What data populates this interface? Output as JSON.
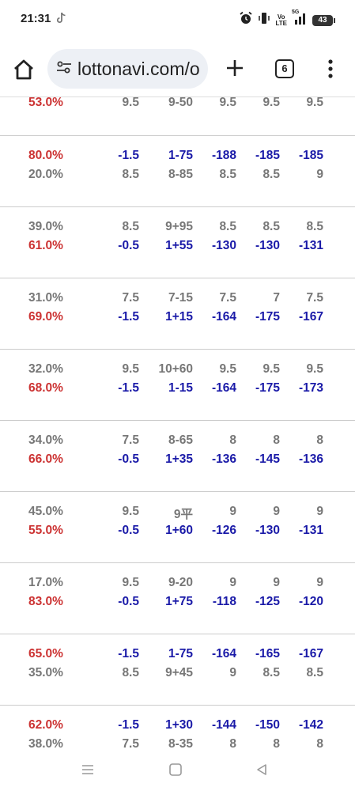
{
  "status": {
    "time": "21:31",
    "volte_top": "Vo",
    "volte_bottom": "LTE",
    "signal_label": "5G",
    "battery": "43"
  },
  "browser": {
    "url": "lottonavi.com/o",
    "tab_count": "6"
  },
  "top_row": {
    "pct": "53.0%",
    "v1": "9.5",
    "v2": "9-50",
    "v3": "9.5",
    "v4": "9.5",
    "v5": "9.5",
    "pct_color": "red",
    "val_color": "gray"
  },
  "groups": [
    {
      "rows": [
        {
          "pct": "80.0%",
          "pct_color": "red",
          "val_color": "blue",
          "v1": "-1.5",
          "v2": "1-75",
          "v3": "-188",
          "v4": "-185",
          "v5": "-185"
        },
        {
          "pct": "20.0%",
          "pct_color": "gray",
          "val_color": "gray",
          "v1": "8.5",
          "v2": "8-85",
          "v3": "8.5",
          "v4": "8.5",
          "v5": "9"
        }
      ]
    },
    {
      "rows": [
        {
          "pct": "39.0%",
          "pct_color": "gray",
          "val_color": "gray",
          "v1": "8.5",
          "v2": "9+95",
          "v3": "8.5",
          "v4": "8.5",
          "v5": "8.5"
        },
        {
          "pct": "61.0%",
          "pct_color": "red",
          "val_color": "blue",
          "v1": "-0.5",
          "v2": "1+55",
          "v3": "-130",
          "v4": "-130",
          "v5": "-131"
        }
      ]
    },
    {
      "rows": [
        {
          "pct": "31.0%",
          "pct_color": "gray",
          "val_color": "gray",
          "v1": "7.5",
          "v2": "7-15",
          "v3": "7.5",
          "v4": "7",
          "v5": "7.5"
        },
        {
          "pct": "69.0%",
          "pct_color": "red",
          "val_color": "blue",
          "v1": "-1.5",
          "v2": "1+15",
          "v3": "-164",
          "v4": "-175",
          "v5": "-167"
        }
      ]
    },
    {
      "rows": [
        {
          "pct": "32.0%",
          "pct_color": "gray",
          "val_color": "gray",
          "v1": "9.5",
          "v2": "10+60",
          "v3": "9.5",
          "v4": "9.5",
          "v5": "9.5"
        },
        {
          "pct": "68.0%",
          "pct_color": "red",
          "val_color": "blue",
          "v1": "-1.5",
          "v2": "1-15",
          "v3": "-164",
          "v4": "-175",
          "v5": "-173"
        }
      ]
    },
    {
      "rows": [
        {
          "pct": "34.0%",
          "pct_color": "gray",
          "val_color": "gray",
          "v1": "7.5",
          "v2": "8-65",
          "v3": "8",
          "v4": "8",
          "v5": "8"
        },
        {
          "pct": "66.0%",
          "pct_color": "red",
          "val_color": "blue",
          "v1": "-0.5",
          "v2": "1+35",
          "v3": "-136",
          "v4": "-145",
          "v5": "-136"
        }
      ]
    },
    {
      "rows": [
        {
          "pct": "45.0%",
          "pct_color": "gray",
          "val_color": "gray",
          "v1": "9.5",
          "v2": "9平",
          "v3": "9",
          "v4": "9",
          "v5": "9"
        },
        {
          "pct": "55.0%",
          "pct_color": "red",
          "val_color": "blue",
          "v1": "-0.5",
          "v2": "1+60",
          "v3": "-126",
          "v4": "-130",
          "v5": "-131"
        }
      ]
    },
    {
      "rows": [
        {
          "pct": "17.0%",
          "pct_color": "gray",
          "val_color": "gray",
          "v1": "9.5",
          "v2": "9-20",
          "v3": "9",
          "v4": "9",
          "v5": "9"
        },
        {
          "pct": "83.0%",
          "pct_color": "red",
          "val_color": "blue",
          "v1": "-0.5",
          "v2": "1+75",
          "v3": "-118",
          "v4": "-125",
          "v5": "-120"
        }
      ]
    },
    {
      "rows": [
        {
          "pct": "65.0%",
          "pct_color": "red",
          "val_color": "blue",
          "v1": "-1.5",
          "v2": "1-75",
          "v3": "-164",
          "v4": "-165",
          "v5": "-167"
        },
        {
          "pct": "35.0%",
          "pct_color": "gray",
          "val_color": "gray",
          "v1": "8.5",
          "v2": "9+45",
          "v3": "9",
          "v4": "8.5",
          "v5": "8.5"
        }
      ]
    },
    {
      "rows": [
        {
          "pct": "62.0%",
          "pct_color": "red",
          "val_color": "blue",
          "v1": "-1.5",
          "v2": "1+30",
          "v3": "-144",
          "v4": "-150",
          "v5": "-142"
        },
        {
          "pct": "38.0%",
          "pct_color": "gray",
          "val_color": "gray",
          "v1": "7.5",
          "v2": "8-35",
          "v3": "8",
          "v4": "8",
          "v5": "8"
        }
      ]
    }
  ],
  "colors": {
    "red": "#cc3333",
    "blue": "#1a1aa8",
    "gray": "#777777"
  },
  "icons": {
    "home": "home-icon",
    "tune": "tune-icon",
    "new_tab": "plus-icon",
    "menu": "more-vert-icon",
    "nav_recent": "recent-apps-icon",
    "nav_home": "nav-home-icon",
    "nav_back": "back-icon"
  }
}
